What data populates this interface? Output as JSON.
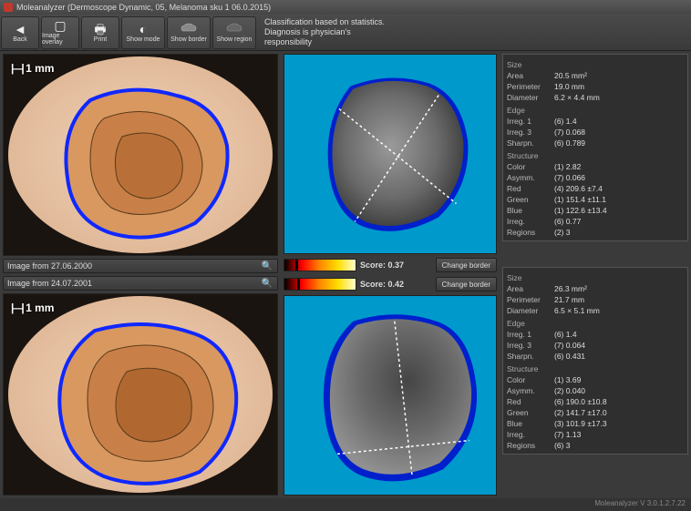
{
  "window_title": "Moleanalyzer (Dermoscope Dynamic, 05, Melanoma sku 1 06.0.2015)",
  "toolbar": {
    "back": "Back",
    "overlay": "Image overlay",
    "print": "Print",
    "mode": "Show mode",
    "border": "Show border",
    "region": "Show region"
  },
  "disclaimer_line1": "Classification based on statistics.",
  "disclaimer_line2": "Diagnosis is physician's",
  "disclaimer_line3": "responsibility",
  "left_scale": "1 mm",
  "caption_top": "Image from 27.06.2000",
  "caption_bot": "Image from 24.07.2001",
  "score_top_label": "Score: 0.37",
  "score_bot_label": "Score: 0.42",
  "score_top_pos": 15,
  "score_bot_pos": 18,
  "change_border": "Change border",
  "stats_top": {
    "size_title": "Size",
    "area_k": "Area",
    "area_v": "20.5 mm²",
    "perim_k": "Perimeter",
    "perim_v": "19.0 mm",
    "diam_k": "Diameter",
    "diam_v": "6.2 × 4.4 mm",
    "edge_title": "Edge",
    "i1_k": "Irreg. 1",
    "i1_v": "(6) 1.4",
    "i3_k": "Irreg. 3",
    "i3_v": "(7) 0.068",
    "sh_k": "Sharpn.",
    "sh_v": "(6) 0.789",
    "struct_title": "Structure",
    "col_k": "Color",
    "col_v": "(1) 2.82",
    "asy_k": "Asymm.",
    "asy_v": "(7) 0.066",
    "red_k": "Red",
    "red_v": "(4) 209.6 ±7.4",
    "grn_k": "Green",
    "grn_v": "(1) 151.4 ±11.1",
    "blu_k": "Blue",
    "blu_v": "(1) 122.6 ±13.4",
    "irr_k": "Irreg.",
    "irr_v": "(6) 0.77",
    "reg_k": "Regions",
    "reg_v": "(2) 3"
  },
  "stats_bot": {
    "size_title": "Size",
    "area_k": "Area",
    "area_v": "26.3 mm²",
    "perim_k": "Perimeter",
    "perim_v": "21.7 mm",
    "diam_k": "Diameter",
    "diam_v": "6.5 × 5.1 mm",
    "edge_title": "Edge",
    "i1_k": "Irreg. 1",
    "i1_v": "(6) 1.4",
    "i3_k": "Irreg. 3",
    "i3_v": "(7) 0.064",
    "sh_k": "Sharpn.",
    "sh_v": "(6) 0.431",
    "struct_title": "Structure",
    "col_k": "Color",
    "col_v": "(1) 3.69",
    "asy_k": "Asymm.",
    "asy_v": "(2) 0.040",
    "red_k": "Red",
    "red_v": "(6) 190.0 ±10.8",
    "grn_k": "Green",
    "grn_v": "(2) 141.7 ±17.0",
    "blu_k": "Blue",
    "blu_v": "(3) 101.9 ±17.3",
    "irr_k": "Irreg.",
    "irr_v": "(7) 1.13",
    "reg_k": "Regions",
    "reg_v": "(6) 3"
  },
  "footer": "Moleanalyzer V 3.0.1.2.7.22",
  "colors": {
    "skin": "#e8c4a8",
    "lesion_light": "#d4935e",
    "lesion_dark": "#b0703a",
    "outline": "#2020ff",
    "contour": "#604020",
    "mid_bg": "#0099cc",
    "gray_mid": "#707070",
    "gray_dark": "#404040"
  }
}
